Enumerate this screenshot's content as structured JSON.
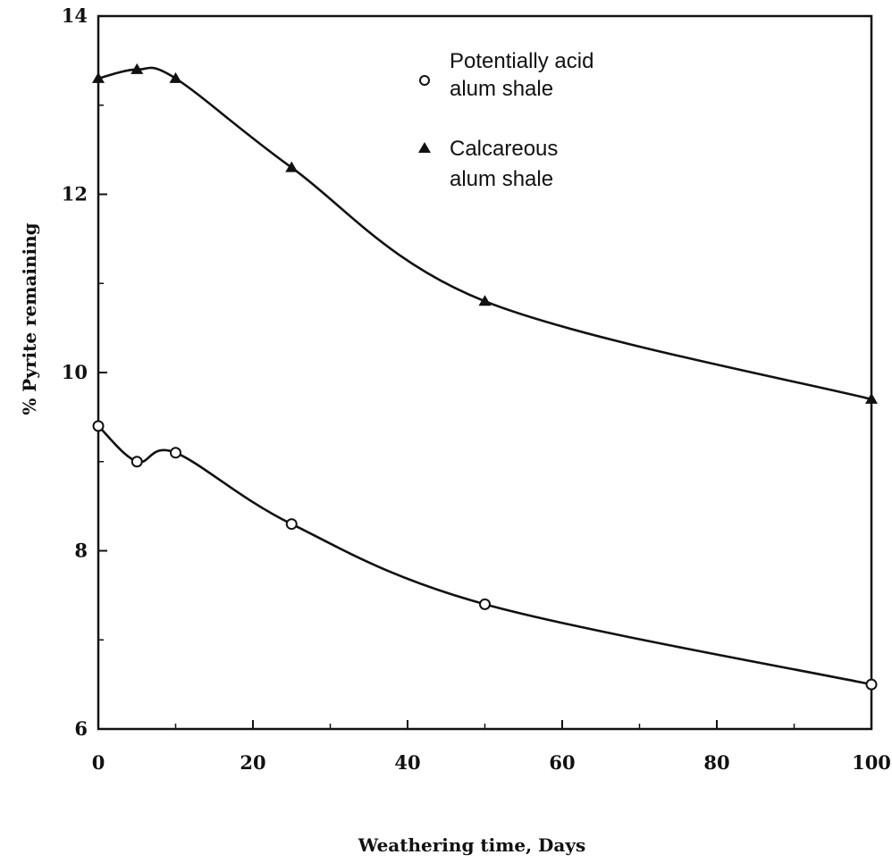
{
  "chart_data": {
    "type": "line",
    "xlabel": "Weathering time, Days",
    "ylabel": "% Pyrite remaining",
    "xlim": [
      0,
      100
    ],
    "ylim": [
      6,
      14
    ],
    "xticks": [
      0,
      20,
      40,
      60,
      80,
      100
    ],
    "xtick_labels": [
      "0",
      "20",
      "40",
      "60",
      "80",
      "100"
    ],
    "yticks": [
      6,
      8,
      10,
      12,
      14
    ],
    "ytick_labels": [
      "6",
      "8",
      "10",
      "12",
      "14"
    ],
    "legend_placement": "top-center",
    "grid": false,
    "series": [
      {
        "name": "Potentially acid alum shale",
        "legend_lines": [
          "Potentially acid",
          "alum shale"
        ],
        "marker": "open-circle",
        "color": "#111111",
        "x": [
          0,
          5,
          10,
          25,
          50,
          100
        ],
        "y": [
          9.4,
          9.0,
          9.1,
          8.3,
          7.4,
          6.5
        ]
      },
      {
        "name": "Calcareous alum shale",
        "legend_lines": [
          "Calcareous",
          "alum shale"
        ],
        "marker": "filled-triangle",
        "color": "#111111",
        "x": [
          0,
          5,
          10,
          25,
          50,
          100
        ],
        "y": [
          13.3,
          13.4,
          13.3,
          12.3,
          10.8,
          9.7
        ]
      }
    ]
  }
}
